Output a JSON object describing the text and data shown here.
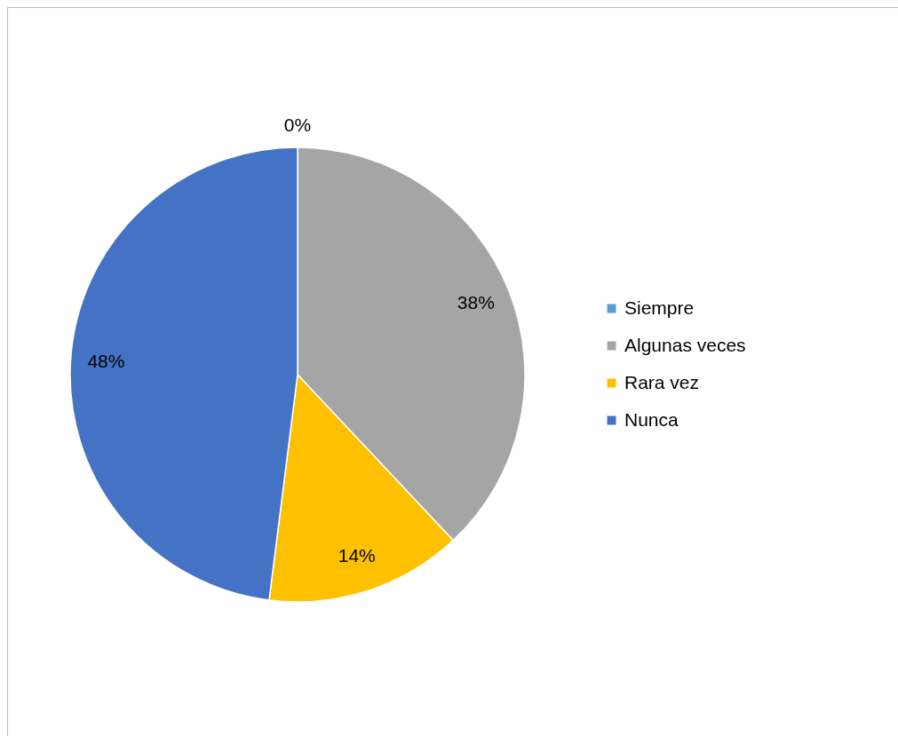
{
  "chart_data": {
    "type": "pie",
    "categories": [
      "Siempre",
      "Algunas veces",
      "Rara vez",
      "Nunca"
    ],
    "values": [
      0,
      38,
      14,
      48
    ],
    "colors": [
      "#5b9bd5",
      "#a5a5a5",
      "#ffc000",
      "#4472c4"
    ],
    "value_labels": [
      "0%",
      "38%",
      "14%",
      "48%"
    ],
    "legend": "right"
  }
}
